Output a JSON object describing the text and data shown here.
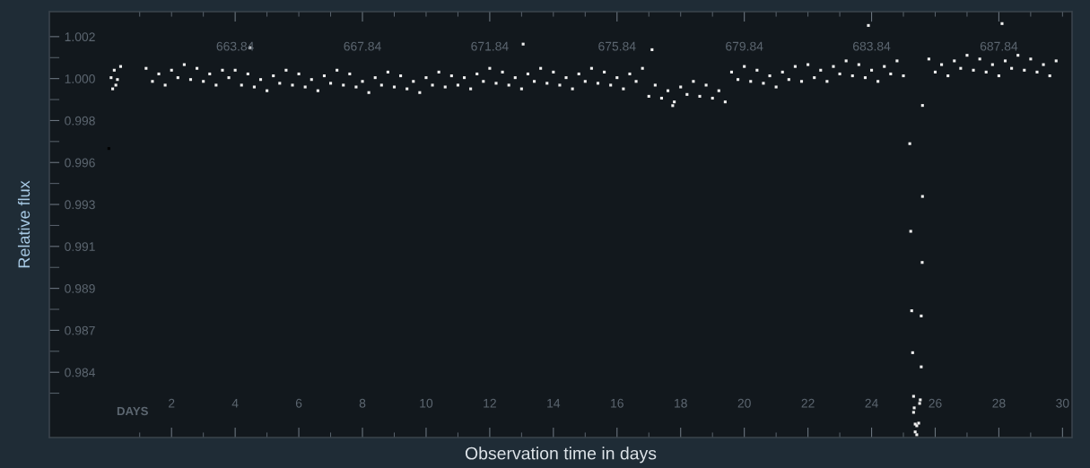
{
  "chart_data": {
    "type": "scatter",
    "xlabel": "Observation time in days",
    "ylabel": "Relative flux",
    "annotations": [
      "DAYS"
    ],
    "xlim": [
      -1.84,
      30.3
    ],
    "ylim": [
      0.9809,
      1.00374
    ],
    "x2lim": [
      658.0,
      690.14
    ],
    "xticks": [
      {
        "value": 1,
        "label": null
      },
      2,
      {
        "value": 3,
        "label": null
      },
      4,
      {
        "value": 5,
        "label": null
      },
      6,
      {
        "value": 7,
        "label": null
      },
      8,
      {
        "value": 9,
        "label": null
      },
      10,
      {
        "value": 11,
        "label": null
      },
      12,
      {
        "value": 13,
        "label": null
      },
      14,
      {
        "value": 15,
        "label": null
      },
      16,
      {
        "value": 17,
        "label": null
      },
      18,
      {
        "value": 19,
        "label": null
      },
      20,
      {
        "value": 21,
        "label": null
      },
      22,
      {
        "value": 23,
        "label": null
      },
      24,
      {
        "value": 25,
        "label": null
      },
      26,
      {
        "value": 27,
        "label": null
      },
      28,
      {
        "value": 29,
        "label": null
      },
      30
    ],
    "x2ticks": [
      {
        "value": 660.84,
        "label": null
      },
      {
        "value": 661.84,
        "label": null
      },
      {
        "value": 662.84,
        "label": null
      },
      663.84,
      {
        "value": 664.84,
        "label": null
      },
      {
        "value": 665.84,
        "label": null
      },
      {
        "value": 666.84,
        "label": null
      },
      667.84,
      {
        "value": 668.84,
        "label": null
      },
      {
        "value": 669.84,
        "label": null
      },
      {
        "value": 670.84,
        "label": null
      },
      671.84,
      {
        "value": 672.84,
        "label": null
      },
      {
        "value": 673.84,
        "label": null
      },
      {
        "value": 674.84,
        "label": null
      },
      675.84,
      {
        "value": 676.84,
        "label": null
      },
      {
        "value": 677.84,
        "label": null
      },
      {
        "value": 678.84,
        "label": null
      },
      679.84,
      {
        "value": 680.84,
        "label": null
      },
      {
        "value": 681.84,
        "label": null
      },
      {
        "value": 682.84,
        "label": null
      },
      683.84,
      {
        "value": 684.84,
        "label": null
      },
      {
        "value": 685.84,
        "label": null
      },
      {
        "value": 686.84,
        "label": null
      },
      687.84,
      {
        "value": 688.84,
        "label": null
      },
      {
        "value": 689.84,
        "label": null
      }
    ],
    "yticks": [
      {
        "value": 1.0024,
        "label": "1.002"
      },
      {
        "value": 1.001275,
        "label": null
      },
      {
        "value": 1.00015,
        "label": "1.000"
      },
      {
        "value": 0.999025,
        "label": null
      },
      {
        "value": 0.9979,
        "label": "0.998"
      },
      {
        "value": 0.996775,
        "label": null
      },
      {
        "value": 0.99565,
        "label": "0.996"
      },
      {
        "value": 0.994525,
        "label": null
      },
      {
        "value": 0.9934,
        "label": "0.993"
      },
      {
        "value": 0.992275,
        "label": null
      },
      {
        "value": 0.99115,
        "label": "0.991"
      },
      {
        "value": 0.990025,
        "label": null
      },
      {
        "value": 0.9889,
        "label": "0.989"
      },
      {
        "value": 0.987775,
        "label": null
      },
      {
        "value": 0.98665,
        "label": "0.987"
      },
      {
        "value": 0.985525,
        "label": null
      },
      {
        "value": 0.9844,
        "label": "0.984"
      },
      {
        "value": 0.983275,
        "label": null
      }
    ],
    "grid": false,
    "marker": "square",
    "series": [
      {
        "color": "#f0f0f0",
        "x": [
          0.1,
          0.15,
          0.2,
          0.25,
          0.3,
          0.4,
          1.2,
          1.4,
          1.6,
          1.8,
          2.0,
          2.2,
          2.4,
          2.6,
          2.8,
          3.0,
          3.2,
          3.4,
          3.6,
          3.8,
          4.0,
          4.2,
          4.4,
          4.6,
          4.8,
          5.0,
          5.2,
          5.4,
          5.6,
          5.8,
          6.0,
          6.2,
          6.4,
          6.6,
          6.8,
          7.0,
          7.2,
          7.4,
          7.6,
          7.8,
          8.0,
          8.2,
          8.4,
          8.6,
          8.8,
          9.0,
          9.2,
          9.4,
          9.6,
          9.8,
          10.0,
          10.2,
          10.4,
          10.6,
          10.8,
          11.0,
          11.2,
          11.4,
          11.6,
          11.8,
          12.0,
          12.2,
          12.4,
          12.6,
          12.8,
          13.0,
          13.2,
          13.4,
          13.6,
          13.8,
          14.0,
          14.2,
          14.4,
          14.6,
          14.8,
          15.0,
          15.2,
          15.4,
          15.6,
          15.8,
          16.0,
          16.2,
          16.4,
          16.6,
          16.8,
          17.0,
          17.2,
          17.4,
          17.6,
          17.8,
          18.0,
          18.2,
          18.4,
          18.6,
          18.8,
          19.0,
          19.2,
          19.4,
          19.6,
          19.8,
          20.0,
          20.2,
          20.4,
          20.6,
          20.8,
          21.0,
          21.2,
          21.4,
          21.6,
          21.8,
          22.0,
          22.2,
          22.4,
          22.6,
          22.8,
          23.0,
          23.2,
          23.4,
          23.6,
          23.8,
          24.0,
          24.2,
          24.4,
          24.6,
          24.8,
          25.0,
          25.8,
          26.0,
          26.2,
          26.4,
          26.6,
          26.8,
          27.0,
          27.2,
          27.4,
          27.6,
          27.8,
          28.0,
          28.2,
          28.4,
          28.6,
          28.8,
          29.0,
          29.2,
          29.4,
          29.6,
          29.8,
          4.47,
          13.05,
          17.1,
          17.75,
          23.9,
          28.1,
          25.2,
          25.6,
          25.6,
          25.23,
          25.59,
          25.26,
          25.56,
          25.29,
          25.56,
          25.32,
          25.53,
          25.51,
          25.34,
          25.32,
          25.37,
          25.48,
          25.42,
          25.37,
          25.42
        ],
        "values": [
          1.0002,
          0.9996,
          1.0006,
          0.9998,
          1.0001,
          1.0008,
          1.0007,
          1.0,
          1.0004,
          0.9998,
          1.0006,
          1.0002,
          1.0009,
          1.0001,
          1.0007,
          1.0,
          1.0004,
          0.9998,
          1.0006,
          1.0002,
          1.0006,
          0.9998,
          1.0004,
          0.9997,
          1.0001,
          0.9995,
          1.0003,
          0.9999,
          1.0006,
          0.9998,
          1.0004,
          0.9997,
          1.0001,
          0.9995,
          1.0003,
          0.9999,
          1.0006,
          0.9998,
          1.0004,
          0.9997,
          1.0,
          0.9994,
          1.0002,
          0.9998,
          1.0005,
          0.9997,
          1.0003,
          0.9996,
          1.0,
          0.9994,
          1.0002,
          0.9998,
          1.0005,
          0.9997,
          1.0003,
          0.9998,
          1.0002,
          0.9996,
          1.0004,
          1.0,
          1.0007,
          0.9999,
          1.0005,
          0.9998,
          1.0002,
          0.9996,
          1.0004,
          1.0,
          1.0007,
          0.9999,
          1.0005,
          0.9998,
          1.0002,
          0.9996,
          1.0004,
          1.0,
          1.0007,
          0.9999,
          1.0005,
          0.9998,
          1.0002,
          0.9996,
          1.0004,
          1.0,
          1.0007,
          0.9992,
          0.9998,
          0.9991,
          0.9995,
          0.9989,
          0.9997,
          0.9993,
          1.0,
          0.9992,
          0.9998,
          0.9991,
          0.9995,
          0.9989,
          1.0005,
          1.0001,
          1.0008,
          1.0,
          1.0006,
          0.9999,
          1.0003,
          0.9997,
          1.0005,
          1.0001,
          1.0008,
          1.0,
          1.0009,
          1.0002,
          1.0006,
          1.0,
          1.0008,
          1.0004,
          1.0011,
          1.0003,
          1.0009,
          1.0002,
          1.0006,
          1.0,
          1.0008,
          1.0004,
          1.0011,
          1.0003,
          1.0012,
          1.0005,
          1.0009,
          1.0003,
          1.0011,
          1.0007,
          1.0014,
          1.0006,
          1.0012,
          1.0005,
          1.0009,
          1.0003,
          1.0011,
          1.0007,
          1.0014,
          1.0006,
          1.0012,
          1.0005,
          1.0009,
          1.0003,
          1.0011,
          1.0018,
          1.002,
          1.0017,
          0.9987,
          1.003,
          1.0031,
          0.99666,
          0.99871,
          0.99383,
          0.99196,
          0.99029,
          0.9877,
          0.98742,
          0.98545,
          0.98469,
          0.98311,
          0.98292,
          0.98273,
          0.98249,
          0.98225,
          0.98162,
          0.98167,
          0.98153,
          0.9812,
          0.98105
        ]
      },
      {
        "color": "#000000",
        "x": [
          0.03
        ],
        "values": [
          0.9964
        ]
      }
    ]
  }
}
